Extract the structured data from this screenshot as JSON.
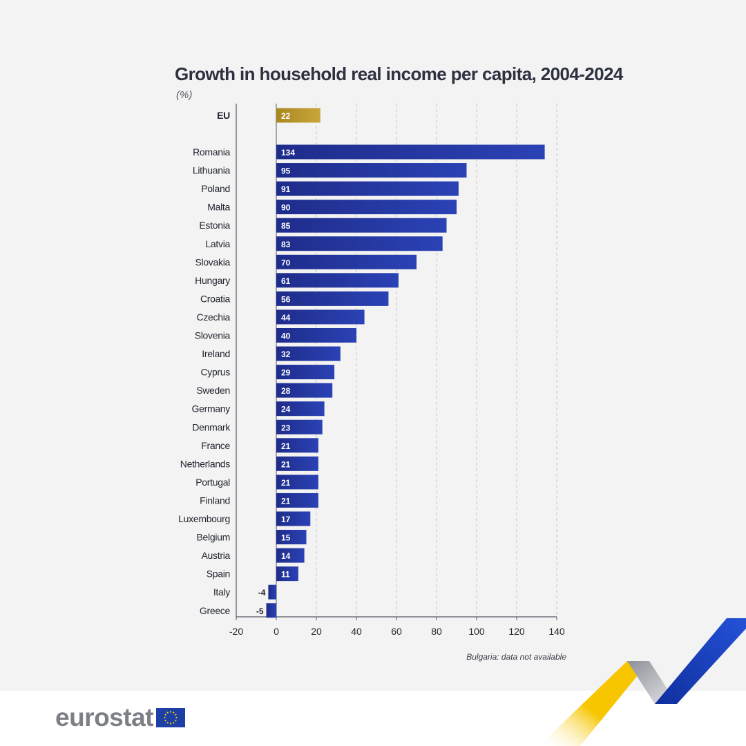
{
  "title": "Growth in household real income per capita, 2004-2024",
  "unit": "(%)",
  "footnote": "Bulgaria: data not available",
  "logo": {
    "text": "eurostat",
    "flag_icon": "eu-flag-icon"
  },
  "colors": {
    "eu_bar": "#b8962a",
    "country_bar": "#23359b",
    "title": "#2d3140",
    "logo_text": "#7d7f87",
    "accent_yellow": "#f7c600",
    "accent_blue": "#1c44c8",
    "accent_grey": "#a7a9b0"
  },
  "chart_data": {
    "type": "bar",
    "orientation": "horizontal",
    "categories": [
      "EU",
      "Romania",
      "Lithuania",
      "Poland",
      "Malta",
      "Estonia",
      "Latvia",
      "Slovakia",
      "Hungary",
      "Croatia",
      "Czechia",
      "Slovenia",
      "Ireland",
      "Cyprus",
      "Sweden",
      "Germany",
      "Denmark",
      "France",
      "Netherlands",
      "Portugal",
      "Finland",
      "Luxembourg",
      "Belgium",
      "Austria",
      "Spain",
      "Italy",
      "Greece"
    ],
    "values": [
      22,
      134,
      95,
      91,
      90,
      85,
      83,
      70,
      61,
      56,
      44,
      40,
      32,
      29,
      28,
      24,
      23,
      21,
      21,
      21,
      21,
      17,
      15,
      14,
      11,
      -4,
      -5
    ],
    "highlight": "EU",
    "xlim": [
      -20,
      140
    ],
    "xticks": [
      -20,
      0,
      20,
      40,
      60,
      80,
      100,
      120,
      140
    ],
    "grid": "vertical dashed",
    "title": "Growth in household real income per capita, 2004-2024",
    "xlabel": "",
    "ylabel": ""
  }
}
